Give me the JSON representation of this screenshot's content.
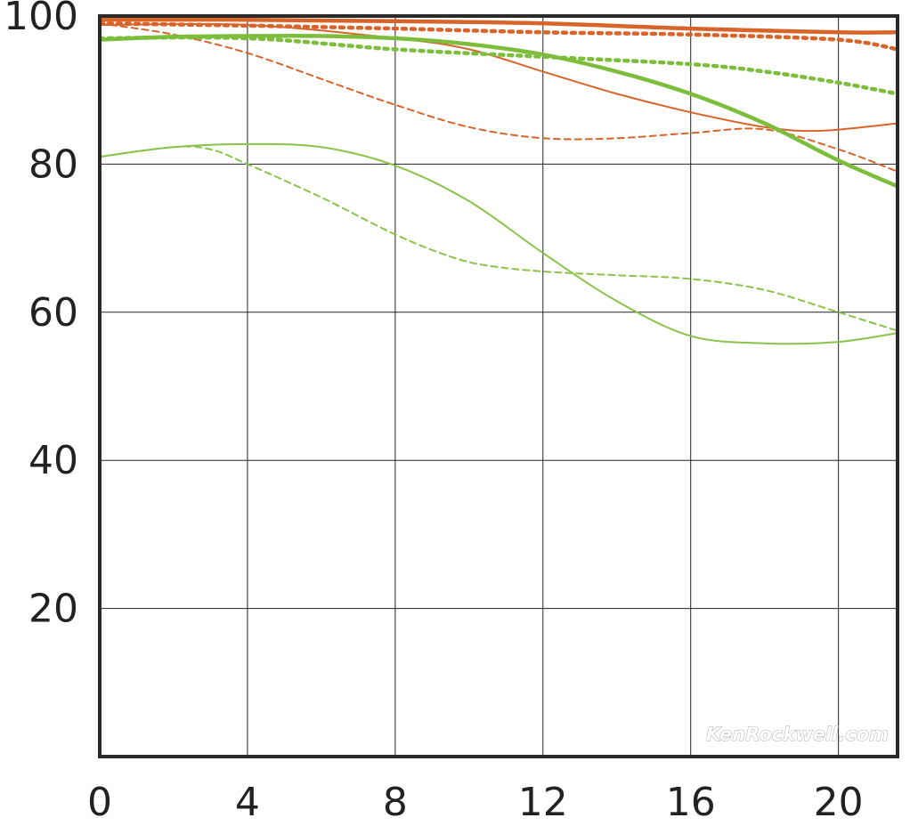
{
  "chart_data": {
    "type": "line",
    "title": "",
    "xlabel": "",
    "ylabel": "",
    "xlim": [
      0,
      21.6
    ],
    "ylim": [
      0,
      100
    ],
    "x_ticks": [
      0,
      4,
      8,
      12,
      16,
      20
    ],
    "y_ticks": [
      20,
      40,
      60,
      80,
      100
    ],
    "grid": true,
    "legend": "none",
    "watermark": "KenRockwell.com",
    "series": [
      {
        "color": "#d9642a",
        "style": "solid",
        "weight": "thick",
        "points": [
          [
            0,
            99.5
          ],
          [
            4,
            99.5
          ],
          [
            8,
            99.3
          ],
          [
            12,
            99
          ],
          [
            16,
            98.3
          ],
          [
            20,
            97.8
          ],
          [
            21.6,
            97.8
          ]
        ]
      },
      {
        "color": "#d9642a",
        "style": "dotted",
        "weight": "thick",
        "points": [
          [
            0,
            99
          ],
          [
            4,
            98.7
          ],
          [
            8,
            98.3
          ],
          [
            12,
            97.8
          ],
          [
            16,
            97.5
          ],
          [
            20,
            96.8
          ],
          [
            21.6,
            95.5
          ]
        ]
      },
      {
        "color": "#d9642a",
        "style": "solid",
        "weight": "thin",
        "points": [
          [
            0,
            98.8
          ],
          [
            4,
            98.8
          ],
          [
            8,
            97
          ],
          [
            10,
            95.5
          ],
          [
            12,
            92.5
          ],
          [
            14,
            89.5
          ],
          [
            16,
            87
          ],
          [
            18,
            85
          ],
          [
            19.5,
            84.5
          ],
          [
            21.6,
            85.5
          ]
        ]
      },
      {
        "color": "#d9642a",
        "style": "dashed",
        "weight": "thin",
        "points": [
          [
            0,
            99
          ],
          [
            2,
            97.5
          ],
          [
            4,
            95
          ],
          [
            6,
            91.5
          ],
          [
            8,
            88
          ],
          [
            10,
            85
          ],
          [
            12,
            83.5
          ],
          [
            14,
            83.5
          ],
          [
            16,
            84.2
          ],
          [
            18,
            84.7
          ],
          [
            20,
            82
          ],
          [
            21.6,
            79
          ]
        ]
      },
      {
        "color": "#7dbd3c",
        "style": "solid",
        "weight": "thick",
        "points": [
          [
            0,
            96.8
          ],
          [
            2,
            97.2
          ],
          [
            4,
            97.3
          ],
          [
            6,
            97.3
          ],
          [
            8,
            97
          ],
          [
            10,
            96.2
          ],
          [
            12,
            94.8
          ],
          [
            14,
            92.5
          ],
          [
            16,
            89.5
          ],
          [
            18,
            85.5
          ],
          [
            20,
            80.5
          ],
          [
            21.6,
            77
          ]
        ]
      },
      {
        "color": "#7dbd3c",
        "style": "dotted",
        "weight": "thick",
        "points": [
          [
            0,
            97
          ],
          [
            4,
            97
          ],
          [
            8,
            95.5
          ],
          [
            12,
            94.5
          ],
          [
            16,
            93.5
          ],
          [
            18,
            92.5
          ],
          [
            20,
            91
          ],
          [
            21.6,
            89.5
          ]
        ]
      },
      {
        "color": "#8bc34a",
        "style": "solid",
        "weight": "thin",
        "points": [
          [
            0,
            81
          ],
          [
            2,
            82.3
          ],
          [
            4,
            82.7
          ],
          [
            6,
            82.3
          ],
          [
            8,
            79.8
          ],
          [
            10,
            75
          ],
          [
            12,
            68
          ],
          [
            14,
            61.5
          ],
          [
            16,
            56.8
          ],
          [
            18,
            55.8
          ],
          [
            20,
            56
          ],
          [
            21.6,
            57.2
          ]
        ]
      },
      {
        "color": "#8bc34a",
        "style": "dashed",
        "weight": "thin",
        "points": [
          [
            0,
            81
          ],
          [
            2,
            82.3
          ],
          [
            3,
            82
          ],
          [
            4,
            80
          ],
          [
            6,
            75.5
          ],
          [
            8,
            70.5
          ],
          [
            9.5,
            67.5
          ],
          [
            10.5,
            66.3
          ],
          [
            12,
            65.5
          ],
          [
            14,
            65
          ],
          [
            16,
            64.5
          ],
          [
            18,
            63
          ],
          [
            20,
            60
          ],
          [
            21.6,
            57.5
          ]
        ]
      }
    ]
  }
}
